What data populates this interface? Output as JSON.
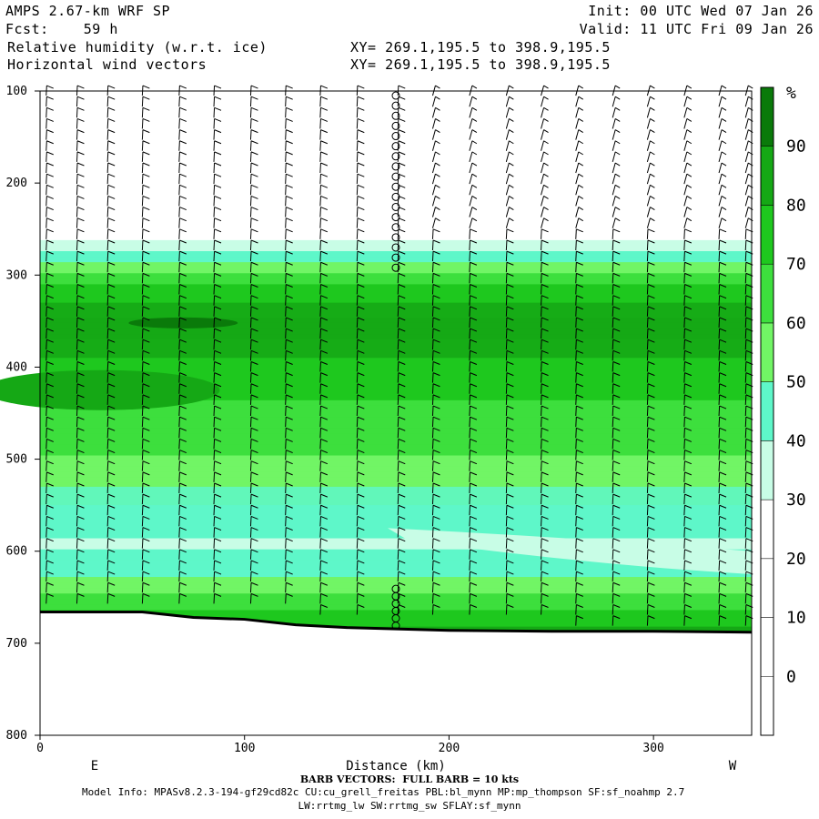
{
  "header": {
    "model": "AMPS 2.67-km WRF SP",
    "forecast": "Fcst:    59 h",
    "field1": "Relative humidity (w.r.t. ice)",
    "field2": "Horizontal wind vectors",
    "init": "Init: 00 UTC Wed 07 Jan 26",
    "valid": "Valid: 11 UTC Fri 09 Jan 26",
    "xy1": "XY= 269.1,195.5 to 398.9,195.5",
    "xy2": "XY= 269.1,195.5 to 398.9,195.5"
  },
  "footer": {
    "barb_note": "BARB VECTORS:  FULL BARB = 10 kts",
    "model_info": "Model Info: MPASv8.2.3-194-gf29cd82c CU:cu_grell_freitas PBL:bl_mynn MP:mp_thompson SF:sf_noahmp 2.7",
    "model_info2": "LW:rrtmg_lw SW:rrtmg_sw SFLAY:sf_mynn"
  },
  "chart_data": {
    "type": "heatmap",
    "xlabel": "Distance (km)",
    "ylabel": "",
    "xlim": [
      0,
      348
    ],
    "ylim": [
      800,
      100
    ],
    "x_ticks": [
      0,
      100,
      200,
      300
    ],
    "y_ticks": [
      100,
      200,
      300,
      400,
      500,
      600,
      700,
      800
    ],
    "x_end_labels": {
      "left": "E",
      "right": "W"
    },
    "colorbar": {
      "unit": "%",
      "levels": [
        0,
        10,
        20,
        30,
        40,
        50,
        60,
        70,
        80,
        90
      ],
      "colors": [
        "#ffffff",
        "#ffffff",
        "#ffffff",
        "#ffffff",
        "#c8fde6",
        "#5ef7c9",
        "#71f565",
        "#3ddf3d",
        "#1ec81e",
        "#15a815",
        "#0a7a0a"
      ]
    },
    "rh_profile_west": [
      {
        "p": 270,
        "rh": 35
      },
      {
        "p": 285,
        "rh": 55
      },
      {
        "p": 300,
        "rh": 65
      },
      {
        "p": 320,
        "rh": 75
      },
      {
        "p": 350,
        "rh": 82
      },
      {
        "p": 380,
        "rh": 78
      },
      {
        "p": 420,
        "rh": 72
      },
      {
        "p": 470,
        "rh": 65
      },
      {
        "p": 520,
        "rh": 55
      },
      {
        "p": 560,
        "rh": 48
      },
      {
        "p": 590,
        "rh": 38
      },
      {
        "p": 620,
        "rh": 48
      },
      {
        "p": 650,
        "rh": 62
      },
      {
        "p": 670,
        "rh": 75
      },
      {
        "p": 685,
        "rh": 85
      }
    ],
    "terrain_pressure": [
      {
        "x": 0,
        "p": 666
      },
      {
        "x": 50,
        "p": 666
      },
      {
        "x": 75,
        "p": 672
      },
      {
        "x": 100,
        "p": 674
      },
      {
        "x": 125,
        "p": 680
      },
      {
        "x": 150,
        "p": 683
      },
      {
        "x": 200,
        "p": 686
      },
      {
        "x": 250,
        "p": 687
      },
      {
        "x": 300,
        "p": 687
      },
      {
        "x": 348,
        "p": 688
      }
    ],
    "barb_columns_x": [
      3,
      18,
      33,
      50,
      68,
      85,
      103,
      120,
      137,
      155,
      175,
      192,
      210,
      228,
      245,
      262,
      280,
      297,
      315,
      332,
      345
    ],
    "calm_column_x": 174
  }
}
